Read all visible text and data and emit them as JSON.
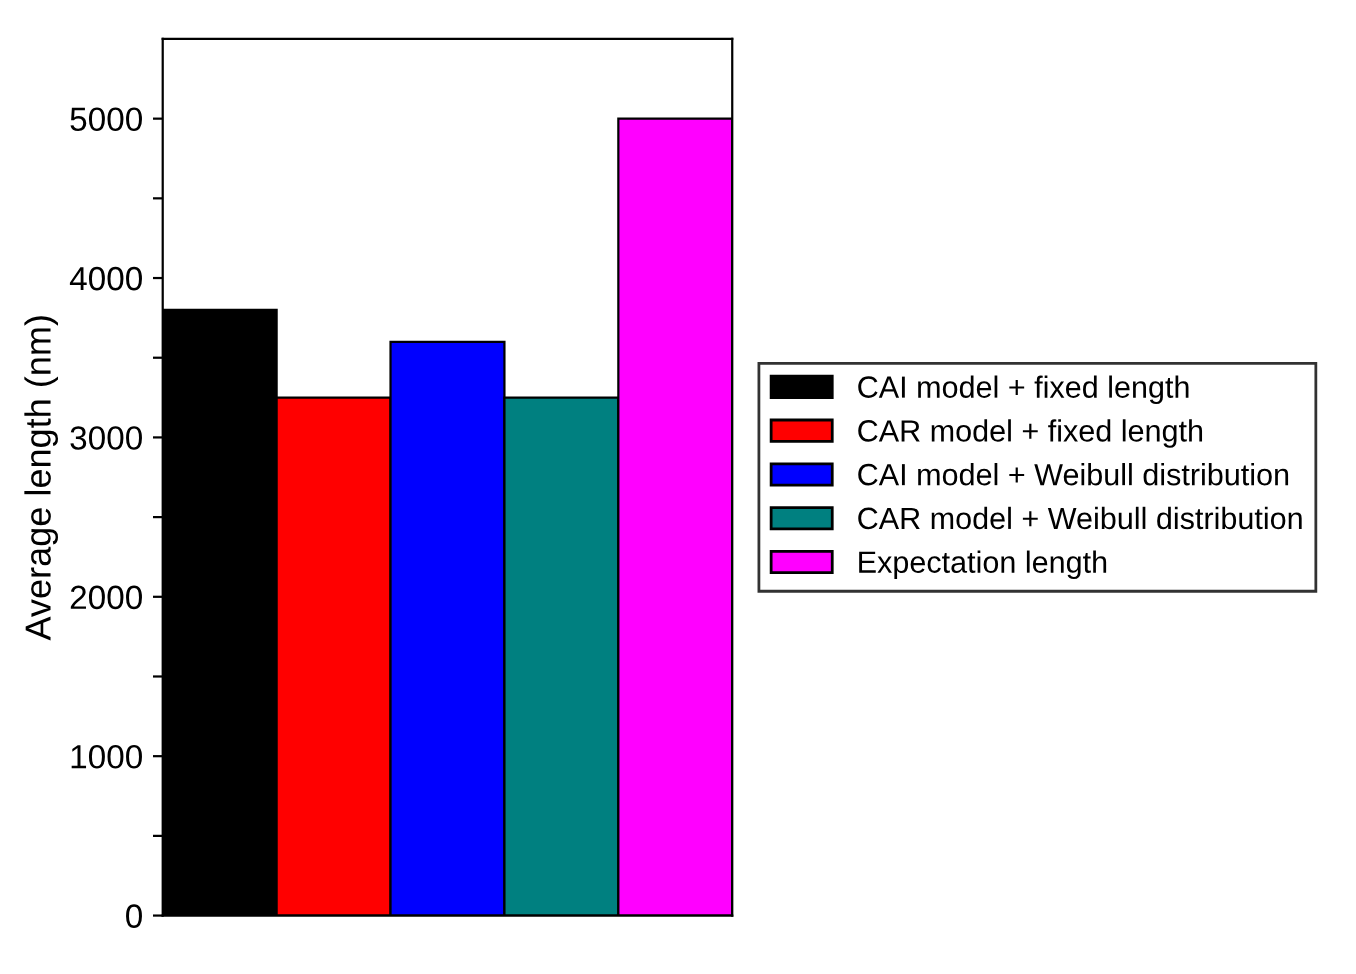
{
  "chart_data": {
    "type": "bar",
    "ylabel": "Average length (nm)",
    "categories": [
      null,
      null,
      null,
      null,
      null
    ],
    "series": [
      {
        "name": "CAI model + fixed length",
        "color": "#000000",
        "values": [
          3800,
          null,
          null,
          null,
          null
        ]
      },
      {
        "name": "CAR model + fixed length",
        "color": "#ff0000",
        "values": [
          null,
          3250,
          null,
          null,
          null
        ]
      },
      {
        "name": "CAI model + Weibull distribution",
        "color": "#0000ff",
        "values": [
          null,
          null,
          3600,
          null,
          null
        ]
      },
      {
        "name": "CAR model + Weibull distribution",
        "color": "#008080",
        "values": [
          null,
          null,
          null,
          3250,
          null
        ]
      },
      {
        "name": "Expectation length",
        "color": "#ff00ff",
        "values": [
          null,
          null,
          null,
          null,
          5000
        ]
      }
    ],
    "ylim": [
      0,
      5500
    ],
    "yticks": [
      0,
      {
        "value": 500,
        "label": null
      },
      1000,
      {
        "value": 1500,
        "label": null
      },
      2000,
      {
        "value": 2500,
        "label": null
      },
      3000,
      {
        "value": 3500,
        "label": null
      },
      4000,
      {
        "value": 4500,
        "label": null
      },
      5000
    ],
    "grid": false,
    "legend": "right",
    "tick_labels": "y"
  }
}
